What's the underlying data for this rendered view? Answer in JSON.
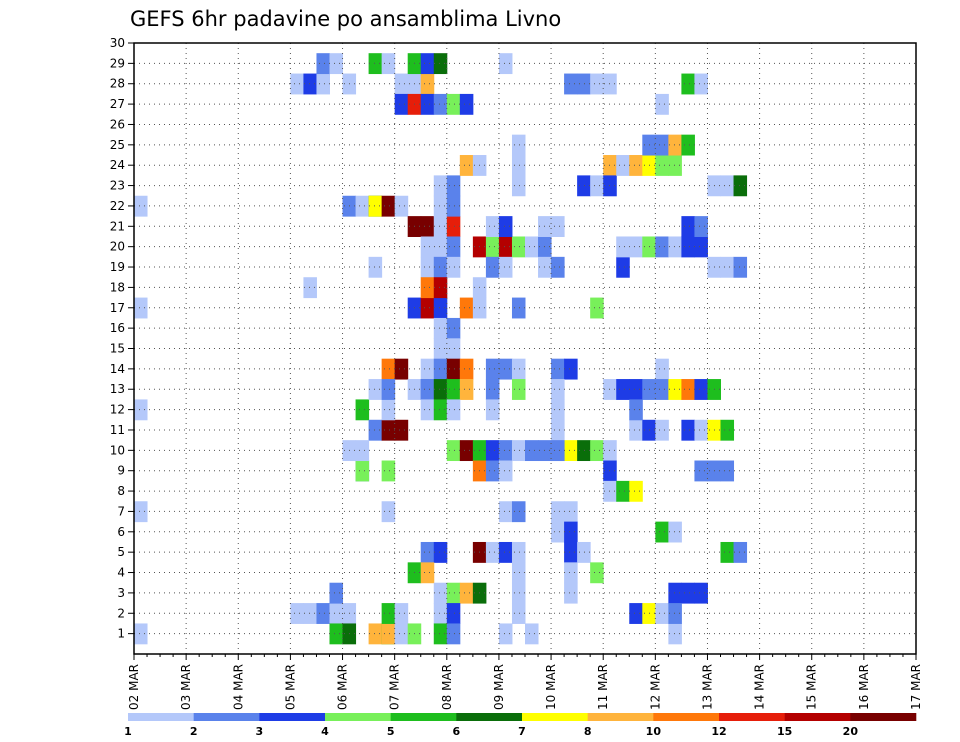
{
  "chart_data": {
    "type": "heatmap",
    "title": "GEFS 6hr padavine po ansamblima Livno",
    "xlabel": "",
    "ylabel": "",
    "x_tick_labels": [
      "02 MAR",
      "03 MAR",
      "04 MAR",
      "05 MAR",
      "06 MAR",
      "07 MAR",
      "08 MAR",
      "09 MAR",
      "10 MAR",
      "11 MAR",
      "12 MAR",
      "13 MAR",
      "14 MAR",
      "15 MAR",
      "16 MAR",
      "17 MAR"
    ],
    "y_tick_labels": [
      "1",
      "2",
      "3",
      "4",
      "5",
      "6",
      "7",
      "8",
      "9",
      "10",
      "11",
      "12",
      "13",
      "14",
      "15",
      "16",
      "17",
      "18",
      "19",
      "20",
      "21",
      "22",
      "23",
      "24",
      "25",
      "26",
      "27",
      "28",
      "29",
      "30"
    ],
    "y_range": [
      0,
      30
    ],
    "grid": true,
    "colorbar": {
      "levels": [
        "1",
        "2",
        "3",
        "4",
        "5",
        "6",
        "7",
        "8",
        "10",
        "12",
        "15",
        "20"
      ],
      "colors": [
        "#b4c8fa",
        "#5a82eb",
        "#1e3ce6",
        "#78f05a",
        "#1ebe1e",
        "#0a6e0a",
        "#ffff00",
        "#ffb43c",
        "#ff780a",
        "#e61e0a",
        "#b40000",
        "#780000"
      ]
    },
    "units_x": "forecast step (6-hourly, 0 = 02 MAR 00Z)",
    "units_y": "ensemble member",
    "cells": [
      [
        0,
        1,
        1
      ],
      [
        0,
        7,
        1
      ],
      [
        0,
        12,
        1
      ],
      [
        0,
        17,
        1
      ],
      [
        0,
        22,
        1
      ],
      [
        12,
        28,
        1
      ],
      [
        13,
        28,
        3
      ],
      [
        14,
        28,
        1
      ],
      [
        12,
        2,
        1
      ],
      [
        13,
        2,
        1
      ],
      [
        14,
        2,
        2
      ],
      [
        15,
        2,
        1
      ],
      [
        16,
        2,
        1
      ],
      [
        13,
        18,
        1
      ],
      [
        14,
        29,
        2
      ],
      [
        15,
        29,
        1
      ],
      [
        15,
        3,
        2
      ],
      [
        15,
        1,
        5
      ],
      [
        16,
        1,
        6
      ],
      [
        16,
        22,
        2
      ],
      [
        17,
        22,
        1
      ],
      [
        16,
        28,
        1
      ],
      [
        16,
        10,
        1
      ],
      [
        17,
        12,
        5
      ],
      [
        17,
        9,
        2
      ],
      [
        17,
        9,
        4
      ],
      [
        18,
        22,
        6
      ],
      [
        18,
        1,
        8
      ],
      [
        19,
        1,
        5
      ],
      [
        19,
        14,
        9
      ],
      [
        20,
        14,
        12
      ],
      [
        18,
        29,
        5
      ],
      [
        19,
        29,
        1
      ],
      [
        18,
        11,
        2
      ],
      [
        18,
        13,
        1
      ],
      [
        19,
        1,
        8
      ],
      [
        20,
        1,
        1
      ],
      [
        19,
        2,
        5
      ],
      [
        20,
        2,
        1
      ],
      [
        18,
        19,
        1
      ],
      [
        17,
        10,
        1
      ],
      [
        18,
        22,
        7
      ],
      [
        19,
        22,
        12
      ],
      [
        20,
        22,
        1
      ],
      [
        19,
        11,
        12
      ],
      [
        20,
        11,
        12
      ],
      [
        19,
        12,
        1
      ],
      [
        19,
        13,
        2
      ],
      [
        19,
        9,
        4
      ],
      [
        19,
        7,
        1
      ],
      [
        20,
        28,
        1
      ],
      [
        21,
        28,
        1
      ],
      [
        22,
        28,
        8
      ],
      [
        21,
        29,
        5
      ],
      [
        22,
        29,
        3
      ],
      [
        23,
        29,
        6
      ],
      [
        20,
        27,
        3
      ],
      [
        21,
        27,
        10
      ],
      [
        22,
        27,
        3
      ],
      [
        23,
        27,
        2
      ],
      [
        24,
        27,
        4
      ],
      [
        25,
        27,
        3
      ],
      [
        21,
        21,
        12
      ],
      [
        22,
        21,
        12
      ],
      [
        23,
        21,
        1
      ],
      [
        24,
        21,
        10
      ],
      [
        22,
        20,
        1
      ],
      [
        23,
        20,
        1
      ],
      [
        24,
        20,
        2
      ],
      [
        22,
        19,
        1
      ],
      [
        23,
        19,
        2
      ],
      [
        24,
        19,
        1
      ],
      [
        21,
        17,
        3
      ],
      [
        22,
        17,
        11
      ],
      [
        23,
        17,
        3
      ],
      [
        22,
        18,
        9
      ],
      [
        23,
        18,
        11
      ],
      [
        23,
        16,
        1
      ],
      [
        24,
        16,
        2
      ],
      [
        23,
        15,
        1
      ],
      [
        24,
        15,
        1
      ],
      [
        22,
        14,
        1
      ],
      [
        23,
        14,
        2
      ],
      [
        24,
        14,
        12
      ],
      [
        25,
        14,
        9
      ],
      [
        21,
        13,
        1
      ],
      [
        22,
        13,
        2
      ],
      [
        22,
        13,
        2
      ],
      [
        23,
        13,
        6
      ],
      [
        24,
        13,
        5
      ],
      [
        25,
        13,
        8
      ],
      [
        22,
        12,
        1
      ],
      [
        23,
        12,
        5
      ],
      [
        24,
        12,
        1
      ],
      [
        23,
        23,
        1
      ],
      [
        24,
        23,
        2
      ],
      [
        23,
        22,
        1
      ],
      [
        24,
        22,
        2
      ],
      [
        22,
        5,
        2
      ],
      [
        23,
        5,
        3
      ],
      [
        21,
        4,
        5
      ],
      [
        22,
        4,
        8
      ],
      [
        23,
        3,
        1
      ],
      [
        24,
        3,
        4
      ],
      [
        25,
        3,
        8
      ],
      [
        26,
        3,
        6
      ],
      [
        23,
        2,
        1
      ],
      [
        24,
        2,
        3
      ],
      [
        21,
        1,
        4
      ],
      [
        23,
        1,
        5
      ],
      [
        24,
        1,
        2
      ],
      [
        25,
        24,
        8
      ],
      [
        26,
        24,
        1
      ],
      [
        25,
        17,
        9
      ],
      [
        26,
        17,
        1
      ],
      [
        24,
        10,
        4
      ],
      [
        25,
        10,
        12
      ],
      [
        26,
        10,
        5
      ],
      [
        27,
        10,
        3
      ],
      [
        28,
        10,
        2
      ],
      [
        29,
        10,
        1
      ],
      [
        30,
        10,
        2
      ],
      [
        31,
        10,
        2
      ],
      [
        32,
        10,
        2
      ],
      [
        33,
        10,
        7
      ],
      [
        34,
        10,
        6
      ],
      [
        35,
        10,
        4
      ],
      [
        36,
        10,
        1
      ],
      [
        26,
        9,
        9
      ],
      [
        27,
        9,
        2
      ],
      [
        28,
        9,
        1
      ],
      [
        26,
        20,
        11
      ],
      [
        27,
        20,
        4
      ],
      [
        28,
        20,
        11
      ],
      [
        29,
        20,
        4
      ],
      [
        27,
        19,
        2
      ],
      [
        28,
        19,
        1
      ],
      [
        26,
        18,
        1
      ],
      [
        26,
        5,
        12
      ],
      [
        27,
        5,
        1
      ],
      [
        28,
        5,
        3
      ],
      [
        29,
        5,
        1
      ],
      [
        27,
        21,
        1
      ],
      [
        28,
        21,
        3
      ],
      [
        27,
        14,
        2
      ],
      [
        28,
        14,
        2
      ],
      [
        29,
        14,
        1
      ],
      [
        27,
        13,
        2
      ],
      [
        29,
        13,
        4
      ],
      [
        27,
        12,
        1
      ],
      [
        28,
        7,
        1
      ],
      [
        29,
        7,
        2
      ],
      [
        28,
        1,
        1
      ],
      [
        29,
        2,
        1
      ],
      [
        29,
        3,
        1
      ],
      [
        29,
        4,
        1
      ],
      [
        29,
        17,
        2
      ],
      [
        29,
        25,
        1
      ],
      [
        29,
        24,
        1
      ],
      [
        29,
        23,
        1
      ],
      [
        28,
        29,
        1
      ],
      [
        30,
        1,
        1
      ],
      [
        30,
        20,
        1
      ],
      [
        31,
        20,
        2
      ],
      [
        31,
        21,
        1
      ],
      [
        32,
        21,
        1
      ],
      [
        31,
        19,
        1
      ],
      [
        32,
        19,
        2
      ],
      [
        32,
        14,
        2
      ],
      [
        33,
        14,
        3
      ],
      [
        32,
        13,
        1
      ],
      [
        32,
        12,
        1
      ],
      [
        32,
        11,
        1
      ],
      [
        32,
        10,
        2
      ],
      [
        32,
        7,
        1
      ],
      [
        33,
        7,
        1
      ],
      [
        32,
        6,
        1
      ],
      [
        33,
        6,
        3
      ],
      [
        33,
        5,
        3
      ],
      [
        34,
        5,
        1
      ],
      [
        33,
        4,
        1
      ],
      [
        33,
        3,
        1
      ],
      [
        34,
        23,
        3
      ],
      [
        35,
        23,
        1
      ],
      [
        36,
        23,
        1
      ],
      [
        36,
        24,
        8
      ],
      [
        33,
        28,
        2
      ],
      [
        34,
        28,
        2
      ],
      [
        35,
        28,
        1
      ],
      [
        36,
        28,
        1
      ],
      [
        35,
        17,
        4
      ],
      [
        35,
        4,
        4
      ],
      [
        36,
        13,
        1
      ],
      [
        37,
        13,
        3
      ],
      [
        38,
        13,
        3
      ],
      [
        39,
        13,
        2
      ],
      [
        36,
        9,
        3
      ],
      [
        36,
        8,
        1
      ],
      [
        37,
        8,
        5
      ],
      [
        38,
        8,
        7
      ],
      [
        36,
        23,
        3
      ],
      [
        37,
        24,
        1
      ],
      [
        38,
        24,
        8
      ],
      [
        39,
        24,
        7
      ],
      [
        40,
        24,
        4
      ],
      [
        41,
        24,
        4
      ],
      [
        37,
        19,
        3
      ],
      [
        37,
        20,
        1
      ],
      [
        38,
        20,
        1
      ],
      [
        39,
        20,
        4
      ],
      [
        40,
        20,
        2
      ],
      [
        41,
        20,
        1
      ],
      [
        42,
        20,
        1
      ],
      [
        43,
        20,
        3
      ],
      [
        38,
        11,
        1
      ],
      [
        39,
        11,
        3
      ],
      [
        40,
        11,
        1
      ],
      [
        38,
        12,
        2
      ],
      [
        38,
        2,
        3
      ],
      [
        39,
        2,
        7
      ],
      [
        40,
        2,
        1
      ],
      [
        39,
        25,
        2
      ],
      [
        40,
        25,
        2
      ],
      [
        41,
        25,
        8
      ],
      [
        42,
        25,
        5
      ],
      [
        40,
        27,
        1
      ],
      [
        40,
        14,
        1
      ],
      [
        40,
        13,
        2
      ],
      [
        41,
        13,
        7
      ],
      [
        42,
        13,
        9
      ],
      [
        43,
        13,
        3
      ],
      [
        44,
        13,
        5
      ],
      [
        40,
        6,
        5
      ],
      [
        41,
        6,
        1
      ],
      [
        41,
        1,
        1
      ],
      [
        41,
        3,
        3
      ],
      [
        42,
        3,
        3
      ],
      [
        43,
        3,
        3
      ],
      [
        41,
        2,
        2
      ],
      [
        42,
        11,
        3
      ],
      [
        43,
        11,
        1
      ],
      [
        44,
        11,
        7
      ],
      [
        45,
        11,
        5
      ],
      [
        42,
        28,
        5
      ],
      [
        43,
        28,
        1
      ],
      [
        42,
        20,
        3
      ],
      [
        42,
        21,
        3
      ],
      [
        43,
        21,
        2
      ],
      [
        43,
        9,
        2
      ],
      [
        44,
        9,
        2
      ],
      [
        45,
        9,
        2
      ],
      [
        44,
        23,
        1
      ],
      [
        45,
        23,
        1
      ],
      [
        46,
        23,
        6
      ],
      [
        44,
        19,
        1
      ],
      [
        45,
        19,
        1
      ],
      [
        46,
        19,
        2
      ],
      [
        45,
        5,
        5
      ],
      [
        46,
        5,
        2
      ],
      [
        43,
        0,
        1
      ],
      [
        44,
        0,
        6
      ],
      [
        32,
        0,
        1
      ]
    ]
  }
}
